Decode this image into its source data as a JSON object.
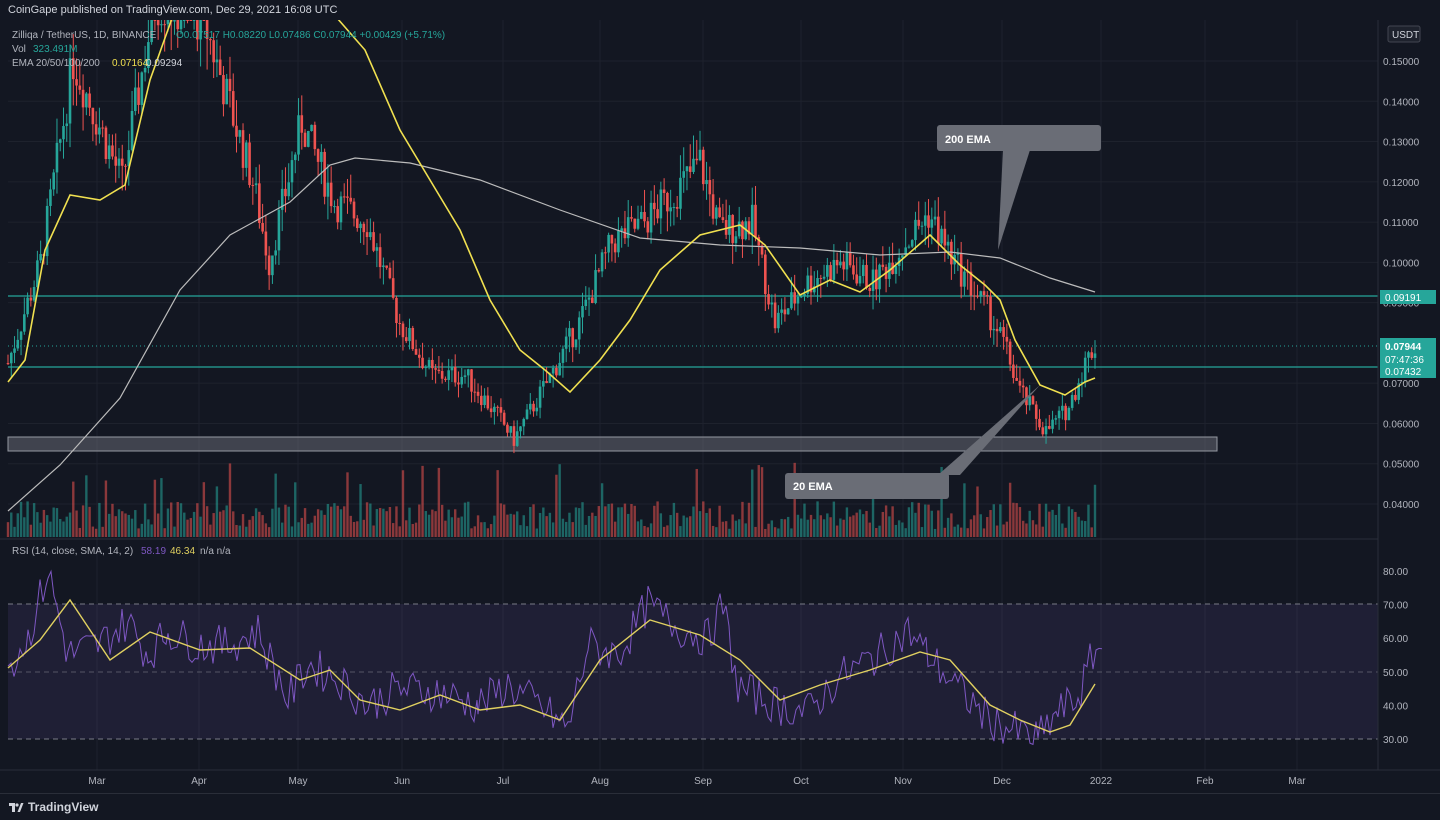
{
  "header": {
    "published": "CoinGape published on TradingView.com, Dec 29, 2021 16:08 UTC"
  },
  "legend": {
    "symbol": "Zilliqa / TetherUS, 1D, BINANCE",
    "ohlc": "O0.07517 H0.08220 L0.07486 C0.07944 +0.00429 (+5.71%)",
    "vol_label": "Vol",
    "vol_value": "323.491M",
    "ema_label": "EMA 20/50/100/200",
    "ema20_value": "0.07164",
    "ema200_value": "0.09294",
    "rsi_label": "RSI (14, close, SMA, 14, 2)",
    "rsi_value": "58.19",
    "rsi_sma_value": "46.34",
    "rsi_extra": "n/a  n/a"
  },
  "price_axis": {
    "currency": "USDT",
    "ticks": [
      "0.15000",
      "0.14000",
      "0.13000",
      "0.12000",
      "0.11000",
      "0.10000",
      "0.09000",
      "0.07000",
      "0.06000",
      "0.05000",
      "0.04000"
    ],
    "tick_values": [
      0.15,
      0.14,
      0.13,
      0.12,
      0.11,
      0.1,
      0.09,
      0.07,
      0.06,
      0.05,
      0.04
    ],
    "badge_resistance": "0.09191",
    "badge_price": "0.07944",
    "badge_countdown": "07:47:36",
    "badge_support": "0.07432"
  },
  "rsi_axis": {
    "ticks": [
      "80.00",
      "70.00",
      "60.00",
      "50.00",
      "40.00",
      "30.00"
    ],
    "tick_values": [
      80,
      70,
      60,
      50,
      40,
      30
    ]
  },
  "time_axis": [
    "Mar",
    "Apr",
    "May",
    "Jun",
    "Jul",
    "Aug",
    "Sep",
    "Oct",
    "Nov",
    "Dec",
    "2022",
    "Feb",
    "Mar"
  ],
  "annotations": {
    "ema200": "200 EMA",
    "ema20": "20 EMA"
  },
  "colors": {
    "background": "#131722",
    "up": "#26a69a",
    "down": "#ef5350",
    "ema20": "#f0e050",
    "ema200": "#bcbcbc",
    "rsi": "#7e57c2",
    "rsi_sma": "#e0d060",
    "level": "#26a69a",
    "zone": "#787b86"
  },
  "chart_data": {
    "type": "candlestick",
    "price_range": [
      0.0345,
      0.157
    ],
    "resistance_level": 0.09191,
    "support_level": 0.07432,
    "demand_zone": [
      0.054,
      0.0573
    ],
    "ema20": [
      [
        0.073,
        0.075
      ],
      [
        0.085,
        0.098
      ],
      [
        0.112,
        0.117
      ],
      [
        0.12,
        0.138
      ],
      [
        0.14,
        0.15
      ],
      [
        0.155,
        0.16
      ],
      [
        0.158,
        0.16
      ],
      [
        0.158,
        0.15
      ],
      [
        0.135,
        0.12
      ],
      [
        0.111,
        0.1
      ],
      [
        0.094,
        0.085
      ],
      [
        0.08,
        0.074
      ],
      [
        0.068,
        0.065
      ],
      [
        0.068,
        0.074
      ],
      [
        0.084,
        0.09
      ],
      [
        0.095,
        0.1
      ],
      [
        0.104,
        0.107
      ],
      [
        0.107,
        0.105
      ],
      [
        0.096,
        0.091
      ],
      [
        0.093,
        0.095
      ],
      [
        0.094,
        0.093
      ],
      [
        0.096,
        0.1
      ],
      [
        0.105,
        0.103
      ],
      [
        0.096,
        0.09
      ],
      [
        0.082,
        0.071
      ],
      [
        0.066,
        0.071
      ]
    ],
    "ema200": [
      [
        0.039,
        0.041
      ],
      [
        0.047,
        0.053
      ],
      [
        0.06,
        0.067
      ],
      [
        0.073,
        0.082
      ],
      [
        0.09,
        0.098
      ],
      [
        0.107,
        0.116
      ],
      [
        0.123,
        0.127
      ],
      [
        0.126,
        0.125
      ],
      [
        0.124,
        0.122
      ],
      [
        0.12,
        0.118
      ],
      [
        0.116,
        0.114
      ],
      [
        0.112,
        0.111
      ],
      [
        0.11,
        0.109
      ],
      [
        0.108,
        0.107
      ],
      [
        0.106,
        0.106
      ],
      [
        0.106,
        0.106
      ],
      [
        0.105,
        0.104
      ],
      [
        0.104,
        0.103
      ],
      [
        0.103,
        0.102
      ],
      [
        0.102,
        0.101
      ],
      [
        0.101,
        0.1005
      ],
      [
        0.1,
        0.099
      ],
      [
        0.098,
        0.097
      ],
      [
        0.095,
        0.0935
      ],
      [
        0.0929,
        0.0929
      ]
    ],
    "rsi_range": [
      25,
      85
    ],
    "rsi_overbought": 70,
    "rsi_mid": 50,
    "rsi_oversold": 30,
    "rsi_last": 58.19,
    "rsi_sma_last": 46.34
  }
}
